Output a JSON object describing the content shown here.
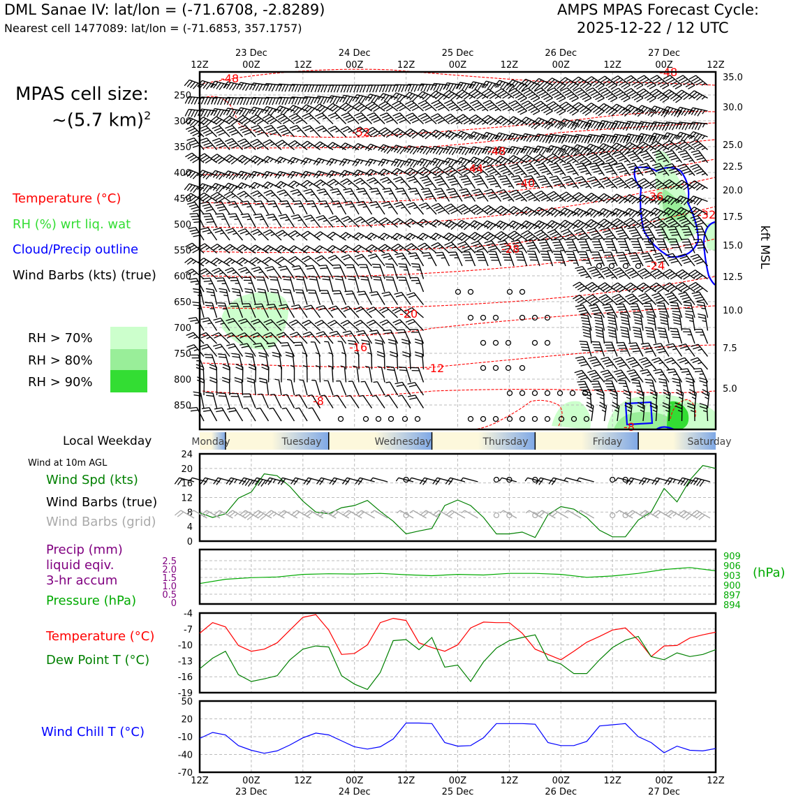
{
  "header": {
    "title": "DML Sanae IV: lat/lon = (-71.6708, -2.8289)",
    "nearest": "Nearest cell 1477089: lat/lon = (-71.6853, 357.1757)",
    "cycle_line1": "AMPS MPAS Forecast Cycle:",
    "cycle_line2": "2025-12-22 / 12 UTC"
  },
  "cell_size": {
    "line1": "MPAS cell size:",
    "line2": "~(5.7 km)",
    "sup": "2"
  },
  "legend": {
    "temperature": "Temperature (°C)",
    "rh": "RH (%) wrt liq. wat",
    "cloud": "Cloud/Precip outline",
    "wind": "Wind Barbs (kts) (true)",
    "rh70": "RH > 70%",
    "rh80": "RH > 80%",
    "rh90": "RH > 90%"
  },
  "colors": {
    "temperature": "#ff0000",
    "rh_text": "#33dd33",
    "cloud": "#0000ff",
    "rh70": "#ccffcc",
    "rh80": "#99ee99",
    "rh90": "#33dd33",
    "wind_speed": "#008000",
    "grid_barbs": "#aaaaaa",
    "precip": "#800080",
    "pressure": "#00aa00",
    "dewpoint": "#008000",
    "windchill": "#0000ff"
  },
  "time_axis": {
    "top_hour_labels": [
      "12Z",
      "00Z",
      "12Z",
      "00Z",
      "12Z",
      "00Z",
      "12Z",
      "00Z",
      "12Z",
      "00Z",
      "12Z"
    ],
    "dates": [
      "23 Dec",
      "24 Dec",
      "25 Dec",
      "26 Dec",
      "27 Dec"
    ],
    "bottom_hour_labels": [
      "12Z",
      "00Z",
      "12Z",
      "00Z",
      "12Z",
      "00Z",
      "12Z",
      "00Z",
      "12Z",
      "00Z",
      "12Z"
    ]
  },
  "weekday": {
    "title": "Local Weekday",
    "days": [
      "Monday",
      "Tuesday",
      "Wednesday",
      "Thursday",
      "Friday",
      "Saturday"
    ]
  },
  "chart_data": [
    {
      "type": "heatmap",
      "name": "profile",
      "pressure_levels": [
        250,
        300,
        350,
        400,
        450,
        500,
        550,
        600,
        650,
        700,
        750,
        800,
        850
      ],
      "pressure_labels": [
        "250",
        "300",
        "350",
        "400",
        "450",
        "500",
        "550",
        "600",
        "650",
        "700",
        "750",
        "800",
        "850"
      ],
      "kft_ticks": [
        35.0,
        30.0,
        25.0,
        22.5,
        20.0,
        17.5,
        15.0,
        12.5,
        10.0,
        7.5,
        5.0
      ],
      "kft_labels": [
        "35.0",
        "30.0",
        "25.0",
        "22.5",
        "20.0",
        "17.5",
        "15.0",
        "12.5",
        "10.0",
        "7.5",
        "5.0"
      ],
      "right_axis_label": "kft MSL",
      "temperature_contour_labels": [
        "-48",
        "-52",
        "-48",
        "-44",
        "-40",
        "-36",
        "-32",
        "-28",
        "-24",
        "-20",
        "-16",
        "-12",
        "-8",
        "-8",
        "-48"
      ],
      "contour_levels": [
        -52,
        -48,
        -44,
        -40,
        -36,
        -32,
        -28,
        -24,
        -20,
        -16,
        -12,
        -8
      ]
    },
    {
      "type": "line",
      "name": "wind10m",
      "panel_title": "Wind at 10m AGL",
      "label_speed": "Wind Spd (kts)",
      "label_barbs_true": "Wind Barbs (true)",
      "label_barbs_grid": "Wind Barbs (grid)",
      "ylim": [
        0,
        24
      ],
      "yticks": [
        "0",
        "4",
        "8",
        "12",
        "16",
        "20",
        "24"
      ],
      "x_hours": [
        0,
        3,
        6,
        9,
        12,
        15,
        18,
        21,
        24,
        27,
        30,
        33,
        36,
        39,
        42,
        45,
        48,
        51,
        54,
        57,
        60,
        63,
        66,
        69,
        72,
        75,
        78,
        81,
        84,
        87,
        90,
        93,
        96,
        99,
        102,
        105,
        108,
        111,
        114,
        117,
        120
      ],
      "values": [
        7.8,
        6.5,
        7.5,
        11.8,
        13.5,
        18.5,
        18,
        15,
        11,
        8,
        7.5,
        9.2,
        9.8,
        11.2,
        8.2,
        5.5,
        2,
        2.8,
        3.5,
        9.8,
        11.3,
        9.8,
        6.5,
        2,
        2,
        2.5,
        1,
        7.3,
        9.5,
        8.8,
        6.5,
        3,
        1.2,
        1.2,
        5.8,
        8,
        14.5,
        10.8,
        16.8,
        20.8,
        20
      ]
    },
    {
      "type": "line",
      "name": "precip_pressure",
      "label_precip_1": "Precip (mm)",
      "label_precip_2": "liquid eqiv.",
      "label_precip_3": "3-hr accum",
      "label_pressure": "Pressure (hPa)",
      "pressure_unit": "(hPa)",
      "precip_ylim": [
        0,
        2.5
      ],
      "precip_ticks": [
        "0",
        "0.5",
        "1.0",
        "1.5",
        "2.0",
        "2.5"
      ],
      "pressure_ylim": [
        894,
        909
      ],
      "pressure_ticks": [
        "894",
        "897",
        "900",
        "903",
        "906",
        "909"
      ],
      "x_hours": [
        0,
        6,
        12,
        18,
        24,
        30,
        36,
        42,
        48,
        54,
        60,
        66,
        72,
        78,
        84,
        90,
        96,
        102,
        108,
        114,
        120
      ],
      "pressure": [
        900.5,
        901.8,
        902.3,
        902.5,
        903.3,
        903.5,
        903.4,
        903.6,
        903.2,
        902.9,
        903.3,
        903.1,
        903.6,
        903.6,
        903.3,
        902.4,
        902.8,
        903.6,
        904.8,
        905.4,
        904.4
      ]
    },
    {
      "type": "line",
      "name": "temperature_dewpoint",
      "label_temperature": "Temperature (°C)",
      "label_dewpoint": "Dew Point T (°C)",
      "ylim": [
        -19,
        -4
      ],
      "yticks": [
        "-19",
        "-16",
        "-13",
        "-10",
        "-7",
        "-4"
      ],
      "x_hours": [
        0,
        3,
        6,
        9,
        12,
        15,
        18,
        21,
        24,
        27,
        30,
        33,
        36,
        39,
        42,
        45,
        48,
        51,
        54,
        57,
        60,
        63,
        66,
        69,
        72,
        75,
        78,
        81,
        84,
        87,
        90,
        93,
        96,
        99,
        102,
        105,
        108,
        111,
        114,
        117,
        120
      ],
      "temperature": [
        -7.8,
        -5.8,
        -6.6,
        -10.1,
        -11.2,
        -10.8,
        -9.6,
        -7.2,
        -4.8,
        -4.3,
        -7.2,
        -11.8,
        -11.6,
        -10,
        -5.8,
        -5,
        -5.4,
        -9.6,
        -10.5,
        -11.2,
        -10,
        -6.8,
        -5.7,
        -5.8,
        -5.8,
        -7.8,
        -10.8,
        -11.8,
        -12.8,
        -11.2,
        -9.5,
        -8.4,
        -7.2,
        -6.8,
        -9.1,
        -12.2,
        -10.2,
        -10.1,
        -8.7,
        -8.1,
        -7.6
      ],
      "dewpoint": [
        -14.5,
        -12.5,
        -11.2,
        -15.6,
        -16.9,
        -16.4,
        -15.8,
        -12.8,
        -10.8,
        -10.2,
        -10.4,
        -15.8,
        -17.4,
        -18.4,
        -15.2,
        -9.2,
        -9,
        -10.9,
        -8.6,
        -14.2,
        -13.8,
        -16.9,
        -13.2,
        -10.6,
        -9.2,
        -8.6,
        -8.1,
        -12.8,
        -13.6,
        -15.4,
        -15.4,
        -12.8,
        -10.5,
        -9.1,
        -8.4,
        -12.2,
        -12.8,
        -11.5,
        -12.2,
        -11.8,
        -10.9
      ]
    },
    {
      "type": "line",
      "name": "windchill",
      "label": "Wind Chill T (°C)",
      "ylim": [
        -70,
        50
      ],
      "yticks": [
        "-70",
        "-40",
        "-10",
        "20",
        "50"
      ],
      "x_hours": [
        0,
        3,
        6,
        9,
        12,
        15,
        18,
        21,
        24,
        27,
        30,
        33,
        36,
        39,
        42,
        45,
        48,
        51,
        54,
        57,
        60,
        63,
        66,
        69,
        72,
        75,
        78,
        81,
        84,
        87,
        90,
        93,
        96,
        99,
        102,
        105,
        108,
        111,
        114,
        117,
        120
      ],
      "values": [
        -13,
        -3,
        -7,
        -25,
        -33,
        -38,
        -34,
        -24,
        -12,
        -4,
        -7,
        -17,
        -27,
        -31,
        -27,
        -14,
        13,
        13,
        12,
        -20,
        -26,
        -25,
        -12,
        12,
        12,
        12,
        11,
        -20,
        -25,
        -25,
        -18,
        8,
        10,
        12,
        -10,
        -20,
        -37,
        -26,
        -33,
        -34,
        -30
      ]
    }
  ]
}
